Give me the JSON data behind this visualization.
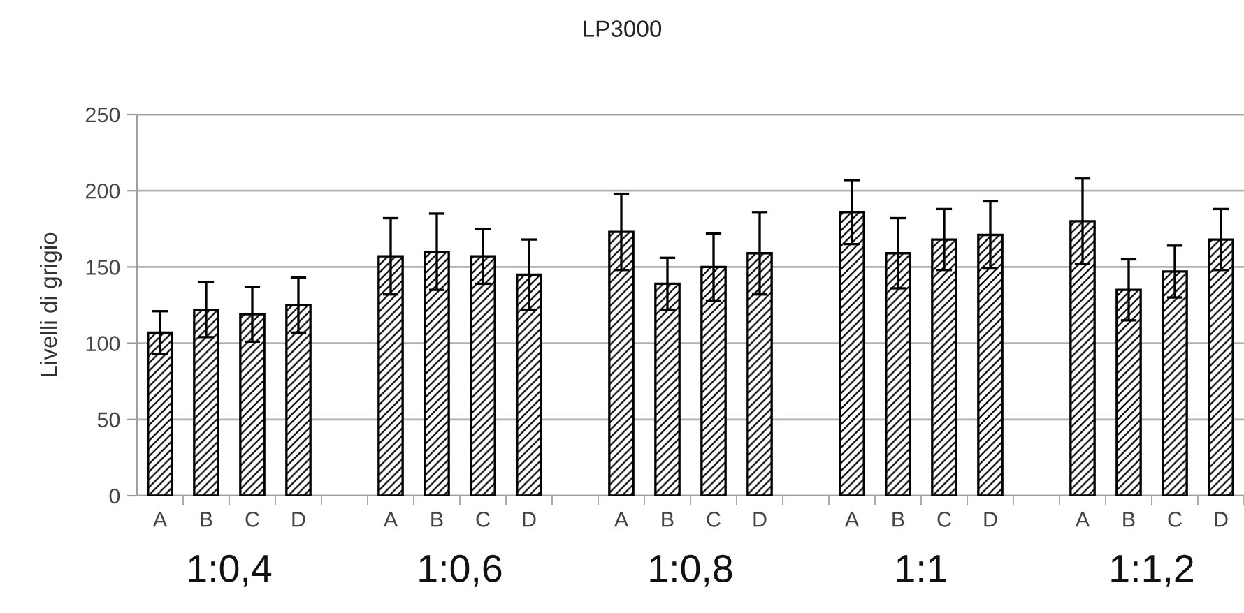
{
  "chart_data": {
    "type": "bar",
    "title": "LP3000",
    "ylabel": "Livelli di grigio",
    "categories": [
      "A",
      "B",
      "C",
      "D",
      null,
      "A",
      "B",
      "C",
      "D",
      null,
      "A",
      "B",
      "C",
      "D",
      null,
      "A",
      "B",
      "C",
      "D",
      null,
      "A",
      "B",
      "C",
      "D"
    ],
    "values": [
      107,
      122,
      119,
      125,
      null,
      157,
      160,
      157,
      145,
      null,
      173,
      139,
      150,
      159,
      null,
      186,
      159,
      168,
      171,
      null,
      180,
      135,
      147,
      168
    ],
    "errors": [
      14,
      18,
      18,
      18,
      null,
      25,
      25,
      18,
      23,
      null,
      25,
      17,
      22,
      27,
      null,
      21,
      23,
      20,
      22,
      null,
      28,
      20,
      17,
      20
    ],
    "color": "#000000",
    "annotations": [
      "1:0,4",
      "1:0,6",
      "1:0,8",
      "1:1",
      "1:1,2"
    ],
    "ylim": [
      0,
      250
    ],
    "yticks": [
      0,
      50,
      100,
      150,
      200,
      250
    ],
    "grid": "y"
  }
}
